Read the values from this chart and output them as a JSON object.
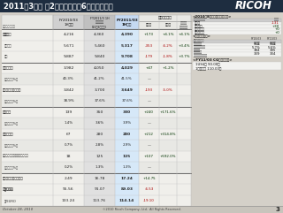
{
  "title": "2011年3月期 第2四半期累計（6ヶ月間）業績",
  "title_bg": "#1e2d40",
  "title_color": "#ffffff",
  "logo": "RICOH",
  "rows": [
    {
      "label": "売上高",
      "sub": "（国内）",
      "values": [
        "4,216",
        "4,360",
        "4,390",
        "+173",
        "+4.1%",
        "+4.1%"
      ],
      "sep": false,
      "pct": false
    },
    {
      "label": "",
      "sub": "（海外）",
      "values": [
        "5,671",
        "5,460",
        "5,317",
        "-353",
        "-6.2%",
        "+3.4%"
      ],
      "sep": false,
      "pct": false
    },
    {
      "label": "",
      "sub": "合計",
      "values": [
        "9,887",
        "9,840",
        "9,708",
        "-179",
        "-1.8%",
        "+3.7%"
      ],
      "sep": false,
      "pct": false,
      "bold_sub": true
    },
    {
      "label": "売上総利益",
      "sub": "",
      "values": [
        "3,982",
        "4,050",
        "4,029",
        "+47",
        "+1.2%",
        ""
      ],
      "sep": true,
      "pct": false
    },
    {
      "label": "",
      "sub": "（対売上高%）",
      "values": [
        "40.3%",
        "41.2%",
        "41.5%",
        "—",
        "",
        ""
      ],
      "sep": false,
      "pct": true
    },
    {
      "label": "販売費＆一般管理費",
      "sub": "",
      "values": [
        "3,842",
        "3,700",
        "3,649",
        "-193",
        "-5.0%",
        ""
      ],
      "sep": false,
      "pct": false
    },
    {
      "label": "",
      "sub": "（対売上高%）",
      "values": [
        "38.9%",
        "37.6%",
        "37.6%",
        "—",
        "",
        ""
      ],
      "sep": false,
      "pct": true
    },
    {
      "label": "営業利益",
      "sub": "",
      "values": [
        "139",
        "350",
        "380",
        "+240",
        "+171.6%",
        ""
      ],
      "sep": true,
      "pct": false
    },
    {
      "label": "",
      "sub": "（対売上高%）",
      "values": [
        "1.4%",
        "3.6%",
        "3.9%",
        "—",
        "",
        ""
      ],
      "sep": false,
      "pct": true
    },
    {
      "label": "税引前利益",
      "sub": "",
      "values": [
        "67",
        "280",
        "280",
        "+212",
        "+314.8%",
        ""
      ],
      "sep": false,
      "pct": false
    },
    {
      "label": "",
      "sub": "（対売上高%）",
      "values": [
        "0.7%",
        "2.8%",
        "2.9%",
        "—",
        "",
        ""
      ],
      "sep": false,
      "pct": true
    },
    {
      "label": "当社株主に帰属する当期純利益",
      "sub": "",
      "values": [
        "18",
        "125",
        "125",
        "+107",
        "+592.0%",
        ""
      ],
      "sep": false,
      "pct": false
    },
    {
      "label": "",
      "sub": "（対売上高%）",
      "values": [
        "0.2%",
        "1.3%",
        "1.3%",
        "—",
        "",
        ""
      ],
      "sep": false,
      "pct": true
    },
    {
      "label": "一株当たり当期純利益",
      "sub": "",
      "values": [
        "2.49",
        "16.78",
        "17.24",
        "+14.75",
        "",
        ""
      ],
      "sep": true,
      "pct": false
    },
    {
      "label": "為替レート",
      "sub": "円/US$",
      "values": [
        "95.56",
        "91.07",
        "89.03",
        "-6.53",
        "",
        ""
      ],
      "sep": false,
      "pct": false
    },
    {
      "label": "",
      "sub": "円/EURO",
      "values": [
        "133.24",
        "113.76",
        "114.14",
        "-19.10",
        "",
        ""
      ],
      "sep": false,
      "pct": false
    }
  ],
  "side1_title": "<2010年8月時点見通しとの差>",
  "side1_header": [
    "（単位：億円）",
    "前回差"
  ],
  "side1_rows": [
    [
      "売上高",
      "-131"
    ],
    [
      "営業利益",
      "+30"
    ],
    [
      "税引前利益",
      "+0"
    ],
    [
      "当期純利益",
      "+0"
    ]
  ],
  "side2_title": "<投資関連情報>",
  "side2_header": [
    "（単位：億円）",
    "FY10/03\n1H実績",
    "FY11/03\n1H実績"
  ],
  "side2_rows": [
    [
      "研究開発費",
      "559",
      "539"
    ],
    [
      "（売上高比率）",
      "5.7%",
      "5.6%"
    ],
    [
      "設備投資",
      "384",
      "395"
    ],
    [
      "減価償却費\n（有形固定資産）",
      "339",
      "334"
    ]
  ],
  "side3_title": "<FY11/03 CG想定レート>",
  "side3_rows": [
    "1US$＝ 90.00円",
    "1ユーロ＝ 110.00円"
  ],
  "footer_left": "October 28, 2010",
  "footer_center": "©2010 Ricoh Company, Ltd.  All Rights Reserved.",
  "footer_page": "3",
  "bg_color": "#d4d0c8",
  "header_dark_bg": "#1e2d40",
  "col_fy2010_bg": "#d0d0d0",
  "col_prev_bg": "#c0c0c0",
  "col_act_bg": "#c5d9f1",
  "table_bg": "#f0efeb",
  "pct_row_bg": "#e8e8e4",
  "sep_color": "#888888",
  "grid_color": "#bbbbbb"
}
